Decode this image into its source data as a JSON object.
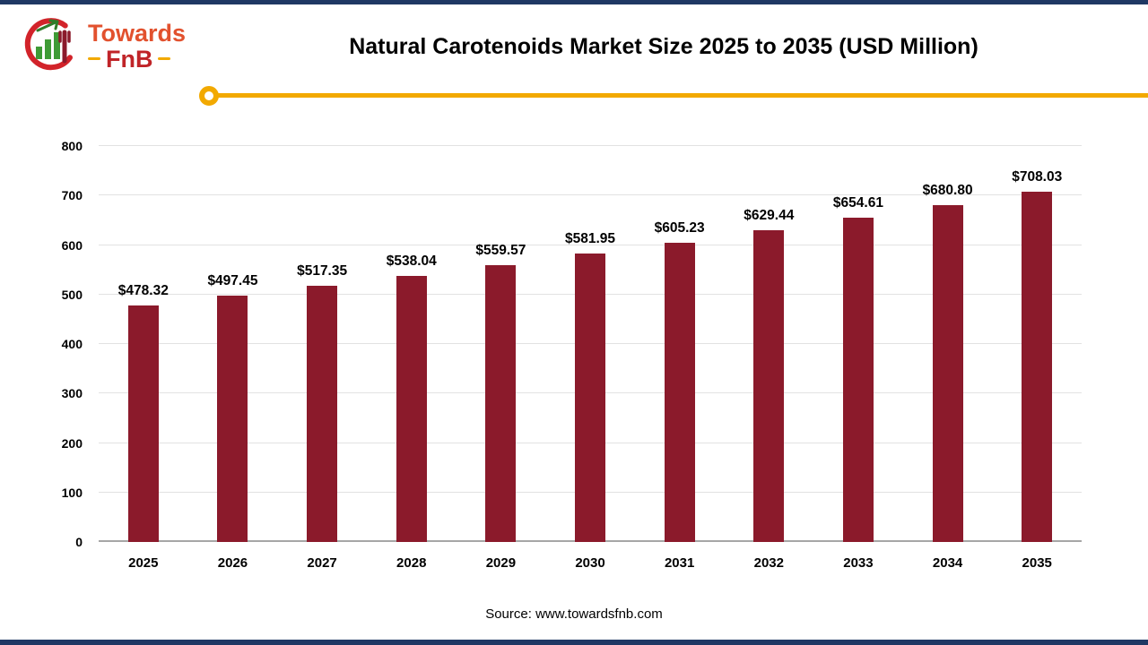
{
  "page": {
    "title": "Natural Carotenoids Market Size 2025 to 2035 (USD Million)",
    "source": "Source: www.towardsfnb.com",
    "logo": {
      "line1": "Towards",
      "line2": "FnB",
      "icon": "towards-fnb-chart-fork-logo"
    }
  },
  "colors": {
    "bar": "#8B1A2B",
    "accent_line": "#F2A900",
    "edge_border": "#1F3864",
    "grid": "#E2E2E2",
    "axis_baseline": "#A6A6A6",
    "logo_orange": "#E2512E",
    "logo_red": "#C02428",
    "logo_green": "#3E9B35"
  },
  "chart_data": {
    "type": "bar",
    "title": "Natural Carotenoids Market Size 2025 to 2035 (USD Million)",
    "categories": [
      "2025",
      "2026",
      "2027",
      "2028",
      "2029",
      "2030",
      "2031",
      "2032",
      "2033",
      "2034",
      "2035"
    ],
    "values": [
      478.32,
      497.45,
      517.35,
      538.04,
      559.57,
      581.95,
      605.23,
      629.44,
      654.61,
      680.8,
      708.03
    ],
    "value_labels": [
      "$478.32",
      "$497.45",
      "$517.35",
      "$538.04",
      "$559.57",
      "$581.95",
      "$605.23",
      "$629.44",
      "$654.61",
      "$680.80",
      "$708.03"
    ],
    "xlabel": "",
    "ylabel": "",
    "ylim": [
      0,
      800
    ],
    "yticks": [
      0,
      100,
      200,
      300,
      400,
      500,
      600,
      700,
      800
    ],
    "grid": "horizontal",
    "legend": "none",
    "bar_color": "#8B1A2B"
  }
}
